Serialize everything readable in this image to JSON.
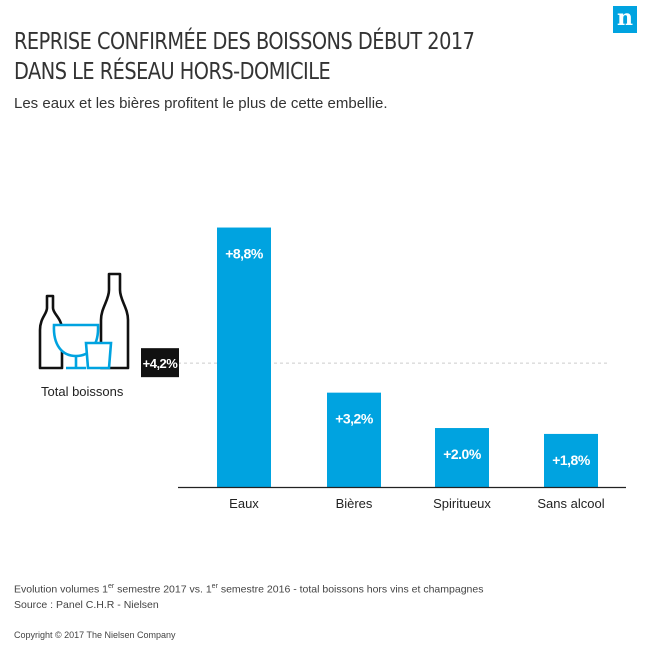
{
  "brand": {
    "logo_letter": "n",
    "color": "#00a3e0"
  },
  "title": {
    "line1": "REPRISE CONFIRMÉE DES BOISSONS DÉBUT 2017",
    "line2": "DANS LE RÉSEAU HORS-DOMICILE"
  },
  "subtitle": "Les eaux et les bières profitent le plus de cette embellie.",
  "total": {
    "label": "Total boissons",
    "value_label": "+4,2%",
    "value": 4.2,
    "icon": "bottles-and-glasses-icon"
  },
  "chart_data": {
    "type": "bar",
    "title": "REPRISE CONFIRMÉE DES BOISSONS DÉBUT 2017 DANS LE RÉSEAU HORS-DOMICILE",
    "categories": [
      "Eaux",
      "Bières",
      "Spiritueux",
      "Sans alcool"
    ],
    "values": [
      8.8,
      3.2,
      2.0,
      1.8
    ],
    "data_labels": [
      "+8,8%",
      "+3,2%",
      "+2.0%",
      "+1,8%"
    ],
    "reference_line": {
      "value": 4.2,
      "label": "+4,2%"
    },
    "xlabel": "",
    "ylabel": "",
    "ylim": [
      0,
      9.7
    ],
    "bar_color": "#00a3e0"
  },
  "footer": {
    "line1_a": "Evolution volumes 1",
    "line1_sup1": "er",
    "line1_b": " semestre 2017 vs. 1",
    "line1_sup2": "er",
    "line1_c": " semestre 2016 - total boissons hors vins et champagnes",
    "line2": "Source : Panel C.H.R - Nielsen"
  },
  "copyright": "Copyright © 2017 The Nielsen Company"
}
